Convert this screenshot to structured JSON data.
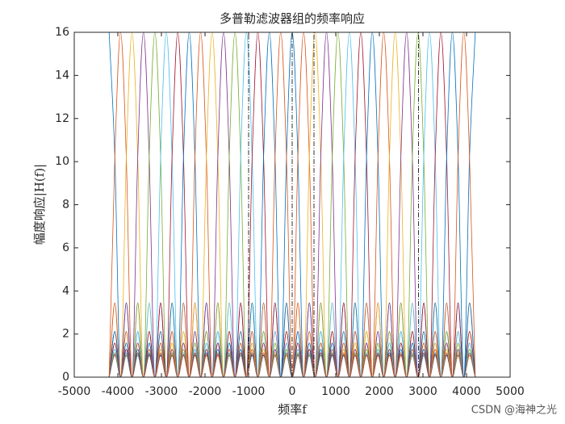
{
  "chart_data": {
    "type": "line",
    "title": "多普勒滤波器组的频率响应",
    "x_label": "频率f",
    "y_label": "幅度响应|H(f)|",
    "watermark": "CSDN @海神之光",
    "xlim": [
      -5000,
      5000
    ],
    "xticks": [
      -5000,
      -4000,
      -3000,
      -2000,
      -1000,
      0,
      1000,
      2000,
      3000,
      4000,
      5000
    ],
    "ylim": [
      0,
      16
    ],
    "yticks": [
      0,
      2,
      4,
      6,
      8,
      10,
      12,
      14,
      16
    ],
    "reference_lines": [
      -1000,
      0,
      500,
      2900
    ],
    "reference_color": "#000000",
    "x": [
      -4200,
      -4068.75,
      -3937.5,
      -3806.25,
      -3675,
      -3543.75,
      -3412.5,
      -3281.25,
      -3150,
      -3018.75,
      -2887.5,
      -2756.25,
      -2625,
      -2493.75,
      -2362.5,
      -2231.25,
      -2100,
      -1968.75,
      -1837.5,
      -1706.25,
      -1575,
      -1443.75,
      -1312.5,
      -1181.25,
      -1050,
      -918.75,
      -787.5,
      -656.25,
      -525,
      -393.75,
      -262.5,
      -131.25,
      0,
      131.25,
      262.5,
      393.75,
      525,
      656.25,
      787.5,
      918.75,
      1050,
      1181.25,
      1312.5,
      1443.75,
      1575,
      1706.25,
      1837.5,
      1968.75,
      2100,
      2231.25,
      2362.5,
      2493.75,
      2625,
      2756.25,
      2887.5,
      3018.75,
      3150,
      3281.25,
      3412.5,
      3543.75,
      3675,
      3806.25,
      3937.5,
      4068.75,
      4200
    ],
    "series": [
      {
        "color": "#0072BD",
        "values": [
          16,
          10.2,
          0,
          3.45,
          0,
          2.12,
          0,
          1.58,
          0,
          1.29,
          0,
          1.13,
          0,
          1.04,
          0,
          1.01,
          0,
          1.01,
          0,
          1.04,
          0,
          1.13,
          0,
          1.29,
          0,
          1.58,
          0,
          2.12,
          0,
          3.45,
          0,
          10.2,
          16,
          10.2,
          0,
          3.45,
          0,
          2.12,
          0,
          1.58,
          0,
          1.29,
          0,
          1.13,
          0,
          1.04,
          0,
          1.01,
          0,
          1.01,
          0,
          1.04,
          0,
          1.13,
          0,
          1.29,
          0,
          1.58,
          0,
          2.12,
          0,
          3.45,
          0,
          10.2,
          16
        ]
      },
      {
        "color": "#D95319",
        "values": [
          0,
          10.2,
          16,
          10.2,
          0,
          3.45,
          0,
          2.12,
          0,
          1.58,
          0,
          1.29,
          0,
          1.13,
          0,
          1.04,
          0,
          1.01,
          0,
          1.01,
          0,
          1.04,
          0,
          1.13,
          0,
          1.29,
          0,
          1.58,
          0,
          2.12,
          0,
          3.45,
          0,
          10.2,
          16,
          10.2,
          0,
          3.45,
          0,
          2.12,
          0,
          1.58,
          0,
          1.29,
          0,
          1.13,
          0,
          1.04,
          0,
          1.01,
          0,
          1.01,
          0,
          1.04,
          0,
          1.13,
          0,
          1.29,
          0,
          1.58,
          0,
          2.12,
          0,
          3.45,
          0
        ]
      },
      {
        "color": "#EDB120",
        "values": [
          0,
          3.45,
          0,
          10.2,
          16,
          10.2,
          0,
          3.45,
          0,
          2.12,
          0,
          1.58,
          0,
          1.29,
          0,
          1.13,
          0,
          1.04,
          0,
          1.01,
          0,
          1.01,
          0,
          1.04,
          0,
          1.13,
          0,
          1.29,
          0,
          1.58,
          0,
          2.12,
          0,
          3.45,
          0,
          10.2,
          16,
          10.2,
          0,
          3.45,
          0,
          2.12,
          0,
          1.58,
          0,
          1.29,
          0,
          1.13,
          0,
          1.04,
          0,
          1.01,
          0,
          1.01,
          0,
          1.04,
          0,
          1.13,
          0,
          1.29,
          0,
          1.58,
          0,
          2.12,
          0
        ]
      },
      {
        "color": "#7E2F8E",
        "values": [
          0,
          2.12,
          0,
          3.45,
          0,
          10.2,
          16,
          10.2,
          0,
          3.45,
          0,
          2.12,
          0,
          1.58,
          0,
          1.29,
          0,
          1.13,
          0,
          1.04,
          0,
          1.01,
          0,
          1.01,
          0,
          1.04,
          0,
          1.13,
          0,
          1.29,
          0,
          1.58,
          0,
          2.12,
          0,
          3.45,
          0,
          10.2,
          16,
          10.2,
          0,
          3.45,
          0,
          2.12,
          0,
          1.58,
          0,
          1.29,
          0,
          1.13,
          0,
          1.04,
          0,
          1.01,
          0,
          1.01,
          0,
          1.04,
          0,
          1.13,
          0,
          1.29,
          0,
          1.58,
          0
        ]
      },
      {
        "color": "#77AC30",
        "values": [
          0,
          1.58,
          0,
          2.12,
          0,
          3.45,
          0,
          10.2,
          16,
          10.2,
          0,
          3.45,
          0,
          2.12,
          0,
          1.58,
          0,
          1.29,
          0,
          1.13,
          0,
          1.04,
          0,
          1.01,
          0,
          1.01,
          0,
          1.04,
          0,
          1.13,
          0,
          1.29,
          0,
          1.58,
          0,
          2.12,
          0,
          3.45,
          0,
          10.2,
          16,
          10.2,
          0,
          3.45,
          0,
          2.12,
          0,
          1.58,
          0,
          1.29,
          0,
          1.13,
          0,
          1.04,
          0,
          1.01,
          0,
          1.01,
          0,
          1.04,
          0,
          1.13,
          0,
          1.29,
          0
        ]
      },
      {
        "color": "#4DBEEE",
        "values": [
          0,
          1.29,
          0,
          1.58,
          0,
          2.12,
          0,
          3.45,
          0,
          10.2,
          16,
          10.2,
          0,
          3.45,
          0,
          2.12,
          0,
          1.58,
          0,
          1.29,
          0,
          1.13,
          0,
          1.04,
          0,
          1.01,
          0,
          1.01,
          0,
          1.04,
          0,
          1.13,
          0,
          1.29,
          0,
          1.58,
          0,
          2.12,
          0,
          3.45,
          0,
          10.2,
          16,
          10.2,
          0,
          3.45,
          0,
          2.12,
          0,
          1.58,
          0,
          1.29,
          0,
          1.13,
          0,
          1.04,
          0,
          1.01,
          0,
          1.01,
          0,
          1.04,
          0,
          1.13,
          0
        ]
      },
      {
        "color": "#A2142F",
        "values": [
          0,
          1.13,
          0,
          1.29,
          0,
          1.58,
          0,
          2.12,
          0,
          3.45,
          0,
          10.2,
          16,
          10.2,
          0,
          3.45,
          0,
          2.12,
          0,
          1.58,
          0,
          1.29,
          0,
          1.13,
          0,
          1.04,
          0,
          1.01,
          0,
          1.01,
          0,
          1.04,
          0,
          1.13,
          0,
          1.29,
          0,
          1.58,
          0,
          2.12,
          0,
          3.45,
          0,
          10.2,
          16,
          10.2,
          0,
          3.45,
          0,
          2.12,
          0,
          1.58,
          0,
          1.29,
          0,
          1.13,
          0,
          1.04,
          0,
          1.01,
          0,
          1.01,
          0,
          1.04,
          0
        ]
      },
      {
        "color": "#0072BD",
        "values": [
          0,
          1.04,
          0,
          1.13,
          0,
          1.29,
          0,
          1.58,
          0,
          2.12,
          0,
          3.45,
          0,
          10.2,
          16,
          10.2,
          0,
          3.45,
          0,
          2.12,
          0,
          1.58,
          0,
          1.29,
          0,
          1.13,
          0,
          1.04,
          0,
          1.01,
          0,
          1.01,
          0,
          1.04,
          0,
          1.13,
          0,
          1.29,
          0,
          1.58,
          0,
          2.12,
          0,
          3.45,
          0,
          10.2,
          16,
          10.2,
          0,
          3.45,
          0,
          2.12,
          0,
          1.58,
          0,
          1.29,
          0,
          1.13,
          0,
          1.04,
          0,
          1.01,
          0,
          1.01,
          0
        ]
      },
      {
        "color": "#D95319",
        "values": [
          0,
          1.01,
          0,
          1.04,
          0,
          1.13,
          0,
          1.29,
          0,
          1.58,
          0,
          2.12,
          0,
          3.45,
          0,
          10.2,
          16,
          10.2,
          0,
          3.45,
          0,
          2.12,
          0,
          1.58,
          0,
          1.29,
          0,
          1.13,
          0,
          1.04,
          0,
          1.01,
          0,
          1.01,
          0,
          1.04,
          0,
          1.13,
          0,
          1.29,
          0,
          1.58,
          0,
          2.12,
          0,
          3.45,
          0,
          10.2,
          16,
          10.2,
          0,
          3.45,
          0,
          2.12,
          0,
          1.58,
          0,
          1.29,
          0,
          1.13,
          0,
          1.04,
          0,
          1.01,
          0
        ]
      },
      {
        "color": "#EDB120",
        "values": [
          0,
          1.01,
          0,
          1.01,
          0,
          1.04,
          0,
          1.13,
          0,
          1.29,
          0,
          1.58,
          0,
          2.12,
          0,
          3.45,
          0,
          10.2,
          16,
          10.2,
          0,
          3.45,
          0,
          2.12,
          0,
          1.58,
          0,
          1.29,
          0,
          1.13,
          0,
          1.04,
          0,
          1.01,
          0,
          1.01,
          0,
          1.04,
          0,
          1.13,
          0,
          1.29,
          0,
          1.58,
          0,
          2.12,
          0,
          3.45,
          0,
          10.2,
          16,
          10.2,
          0,
          3.45,
          0,
          2.12,
          0,
          1.58,
          0,
          1.29,
          0,
          1.13,
          0,
          1.04,
          0
        ]
      },
      {
        "color": "#7E2F8E",
        "values": [
          0,
          1.04,
          0,
          1.01,
          0,
          1.01,
          0,
          1.04,
          0,
          1.13,
          0,
          1.29,
          0,
          1.58,
          0,
          2.12,
          0,
          3.45,
          0,
          10.2,
          16,
          10.2,
          0,
          3.45,
          0,
          2.12,
          0,
          1.58,
          0,
          1.29,
          0,
          1.13,
          0,
          1.04,
          0,
          1.01,
          0,
          1.01,
          0,
          1.04,
          0,
          1.13,
          0,
          1.29,
          0,
          1.58,
          0,
          2.12,
          0,
          3.45,
          0,
          10.2,
          16,
          10.2,
          0,
          3.45,
          0,
          2.12,
          0,
          1.58,
          0,
          1.29,
          0,
          1.13,
          0
        ]
      },
      {
        "color": "#77AC30",
        "values": [
          0,
          1.13,
          0,
          1.04,
          0,
          1.01,
          0,
          1.01,
          0,
          1.04,
          0,
          1.13,
          0,
          1.29,
          0,
          1.58,
          0,
          2.12,
          0,
          3.45,
          0,
          10.2,
          16,
          10.2,
          0,
          3.45,
          0,
          2.12,
          0,
          1.58,
          0,
          1.29,
          0,
          1.13,
          0,
          1.04,
          0,
          1.01,
          0,
          1.01,
          0,
          1.04,
          0,
          1.13,
          0,
          1.29,
          0,
          1.58,
          0,
          2.12,
          0,
          3.45,
          0,
          10.2,
          16,
          10.2,
          0,
          3.45,
          0,
          2.12,
          0,
          1.58,
          0,
          1.29,
          0
        ]
      },
      {
        "color": "#4DBEEE",
        "values": [
          0,
          1.29,
          0,
          1.13,
          0,
          1.04,
          0,
          1.01,
          0,
          1.01,
          0,
          1.04,
          0,
          1.13,
          0,
          1.29,
          0,
          1.58,
          0,
          2.12,
          0,
          3.45,
          0,
          10.2,
          16,
          10.2,
          0,
          3.45,
          0,
          2.12,
          0,
          1.58,
          0,
          1.29,
          0,
          1.13,
          0,
          1.04,
          0,
          1.01,
          0,
          1.01,
          0,
          1.04,
          0,
          1.13,
          0,
          1.29,
          0,
          1.58,
          0,
          2.12,
          0,
          3.45,
          0,
          10.2,
          16,
          10.2,
          0,
          3.45,
          0,
          2.12,
          0,
          1.58,
          0
        ]
      },
      {
        "color": "#A2142F",
        "values": [
          0,
          1.58,
          0,
          1.29,
          0,
          1.13,
          0,
          1.04,
          0,
          1.01,
          0,
          1.01,
          0,
          1.04,
          0,
          1.13,
          0,
          1.29,
          0,
          1.58,
          0,
          2.12,
          0,
          3.45,
          0,
          10.2,
          16,
          10.2,
          0,
          3.45,
          0,
          2.12,
          0,
          1.58,
          0,
          1.29,
          0,
          1.13,
          0,
          1.04,
          0,
          1.01,
          0,
          1.01,
          0,
          1.04,
          0,
          1.13,
          0,
          1.29,
          0,
          1.58,
          0,
          2.12,
          0,
          3.45,
          0,
          10.2,
          16,
          10.2,
          0,
          3.45,
          0,
          2.12,
          0
        ]
      },
      {
        "color": "#0072BD",
        "values": [
          0,
          2.12,
          0,
          1.58,
          0,
          1.29,
          0,
          1.13,
          0,
          1.04,
          0,
          1.01,
          0,
          1.01,
          0,
          1.04,
          0,
          1.13,
          0,
          1.29,
          0,
          1.58,
          0,
          2.12,
          0,
          3.45,
          0,
          10.2,
          16,
          10.2,
          0,
          3.45,
          0,
          2.12,
          0,
          1.58,
          0,
          1.29,
          0,
          1.13,
          0,
          1.04,
          0,
          1.01,
          0,
          1.01,
          0,
          1.04,
          0,
          1.13,
          0,
          1.29,
          0,
          1.58,
          0,
          2.12,
          0,
          3.45,
          0,
          10.2,
          16,
          10.2,
          0,
          3.45,
          0
        ]
      },
      {
        "color": "#D95319",
        "values": [
          0,
          3.45,
          0,
          2.12,
          0,
          1.58,
          0,
          1.29,
          0,
          1.13,
          0,
          1.04,
          0,
          1.01,
          0,
          1.01,
          0,
          1.04,
          0,
          1.13,
          0,
          1.29,
          0,
          1.58,
          0,
          2.12,
          0,
          3.45,
          0,
          10.2,
          16,
          10.2,
          0,
          3.45,
          0,
          2.12,
          0,
          1.58,
          0,
          1.29,
          0,
          1.13,
          0,
          1.04,
          0,
          1.01,
          0,
          1.01,
          0,
          1.04,
          0,
          1.13,
          0,
          1.29,
          0,
          1.58,
          0,
          2.12,
          0,
          3.45,
          0,
          10.2,
          16,
          10.2,
          0
        ]
      }
    ]
  }
}
